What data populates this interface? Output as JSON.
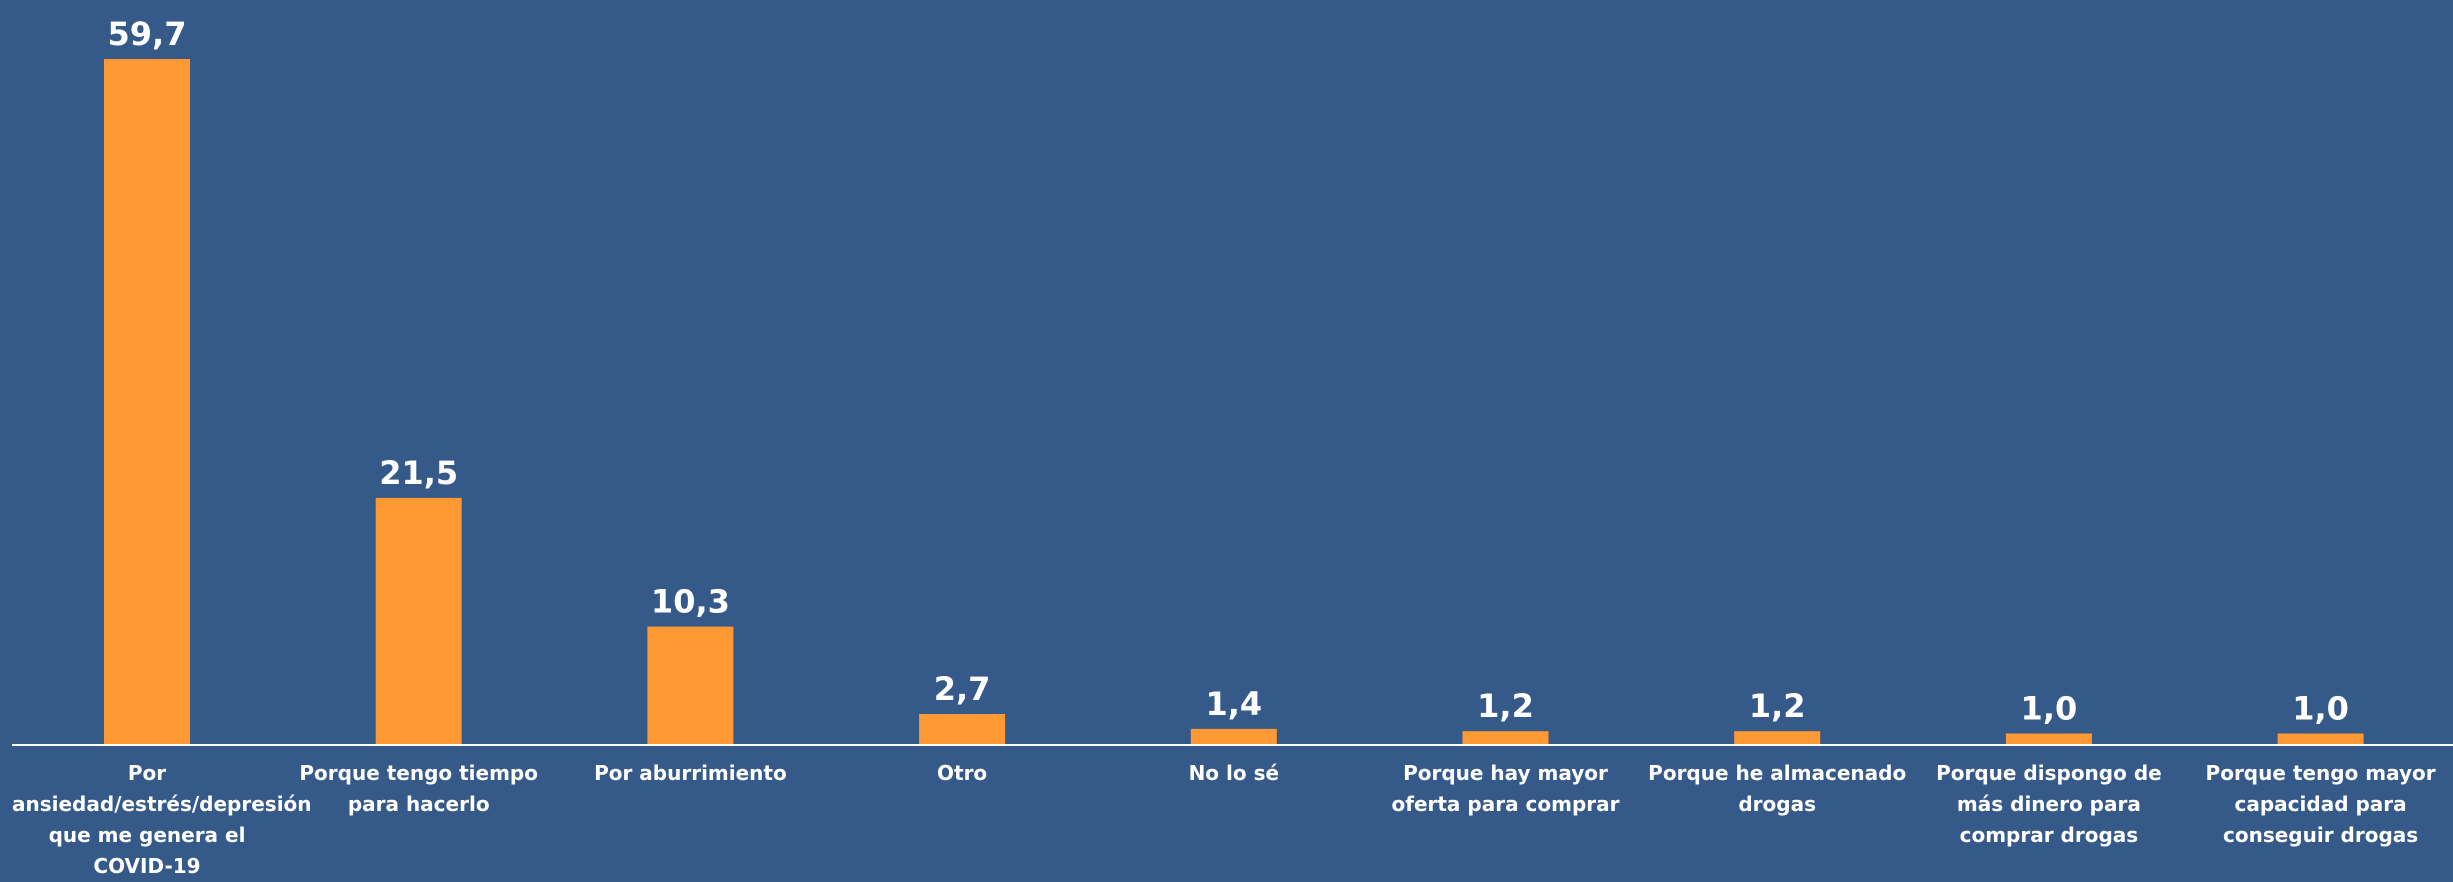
{
  "chart_data": {
    "type": "bar",
    "categories": [
      "Por ansiedad/estrés/depresión que me genera el COVID-19",
      "Porque tengo tiempo para hacerlo",
      "Por aburrimiento",
      "Otro",
      "No lo sé",
      "Porque hay mayor oferta para comprar",
      "Porque he almacenado drogas",
      "Porque dispongo de más dinero para comprar drogas",
      "Porque tengo mayor capacidad para conseguir drogas"
    ],
    "values": [
      59.7,
      21.5,
      10.3,
      2.7,
      1.4,
      1.2,
      1.2,
      1.0,
      1.0
    ],
    "value_labels": [
      "59,7",
      "21,5",
      "10,3",
      "2,7",
      "1,4",
      "1,2",
      "1,2",
      "1,0",
      "1,0"
    ],
    "title": "",
    "xlabel": "",
    "ylabel": "",
    "ylim": [
      0,
      59.7
    ],
    "grid": false,
    "legend": "none",
    "colors": {
      "background": "#355a8a",
      "bar": "#ff9933",
      "text": "#ffffff",
      "axis": "#ffffff"
    }
  }
}
